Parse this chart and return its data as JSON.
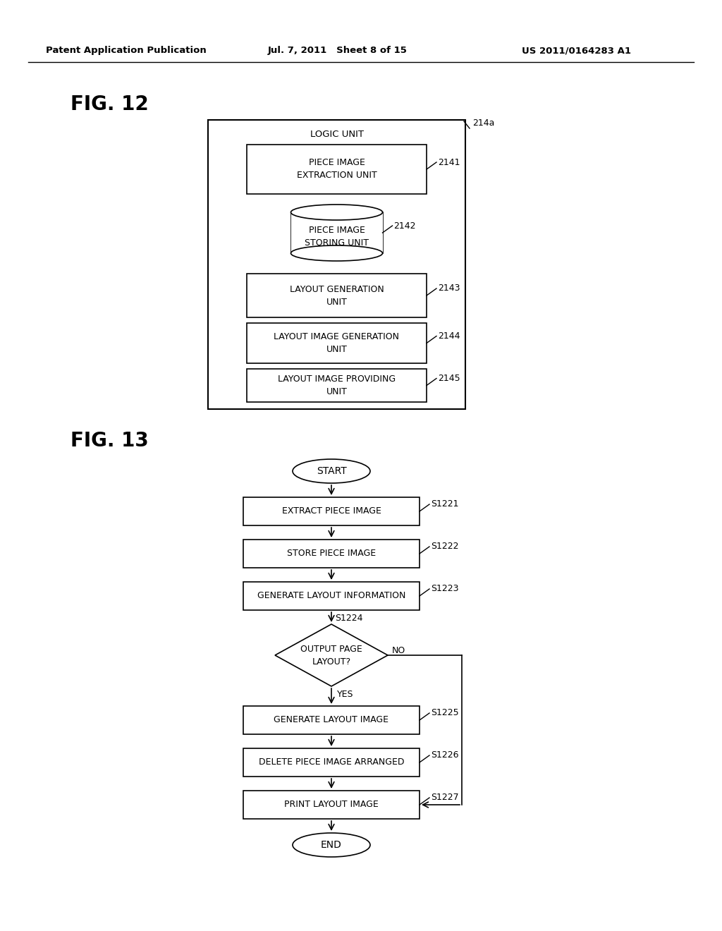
{
  "bg_color": "#ffffff",
  "header_left": "Patent Application Publication",
  "header_mid": "Jul. 7, 2011   Sheet 8 of 15",
  "header_right": "US 2011/0164283 A1",
  "fig12_label": "FIG. 12",
  "fig13_label": "FIG. 13",
  "logic_unit_label": "LOGIC UNIT",
  "logic_unit_ref": "214a",
  "fig12_boxes": [
    {
      "label": "PIECE IMAGE\nEXTRACTION UNIT",
      "ref": "2141"
    },
    {
      "label": "LAYOUT GENERATION\nUNIT",
      "ref": "2143"
    },
    {
      "label": "LAYOUT IMAGE GENERATION\nUNIT",
      "ref": "2144"
    },
    {
      "label": "LAYOUT IMAGE PROVIDING\nUNIT",
      "ref": "2145"
    }
  ],
  "cylinder_label": "PIECE IMAGE\nSTORING UNIT",
  "cylinder_ref": "2142",
  "flow_start": "START",
  "flow_end": "END",
  "flow_steps": [
    {
      "label": "EXTRACT PIECE IMAGE",
      "ref": "S1221",
      "type": "rect"
    },
    {
      "label": "STORE PIECE IMAGE",
      "ref": "S1222",
      "type": "rect"
    },
    {
      "label": "GENERATE LAYOUT INFORMATION",
      "ref": "S1223",
      "type": "rect"
    },
    {
      "label": "OUTPUT PAGE\nLAYOUT?",
      "ref": "S1224",
      "type": "diamond"
    },
    {
      "label": "GENERATE LAYOUT IMAGE",
      "ref": "S1225",
      "type": "rect"
    },
    {
      "label": "DELETE PIECE IMAGE ARRANGED",
      "ref": "S1226",
      "type": "rect"
    },
    {
      "label": "PRINT LAYOUT IMAGE",
      "ref": "S1227",
      "type": "rect"
    }
  ]
}
